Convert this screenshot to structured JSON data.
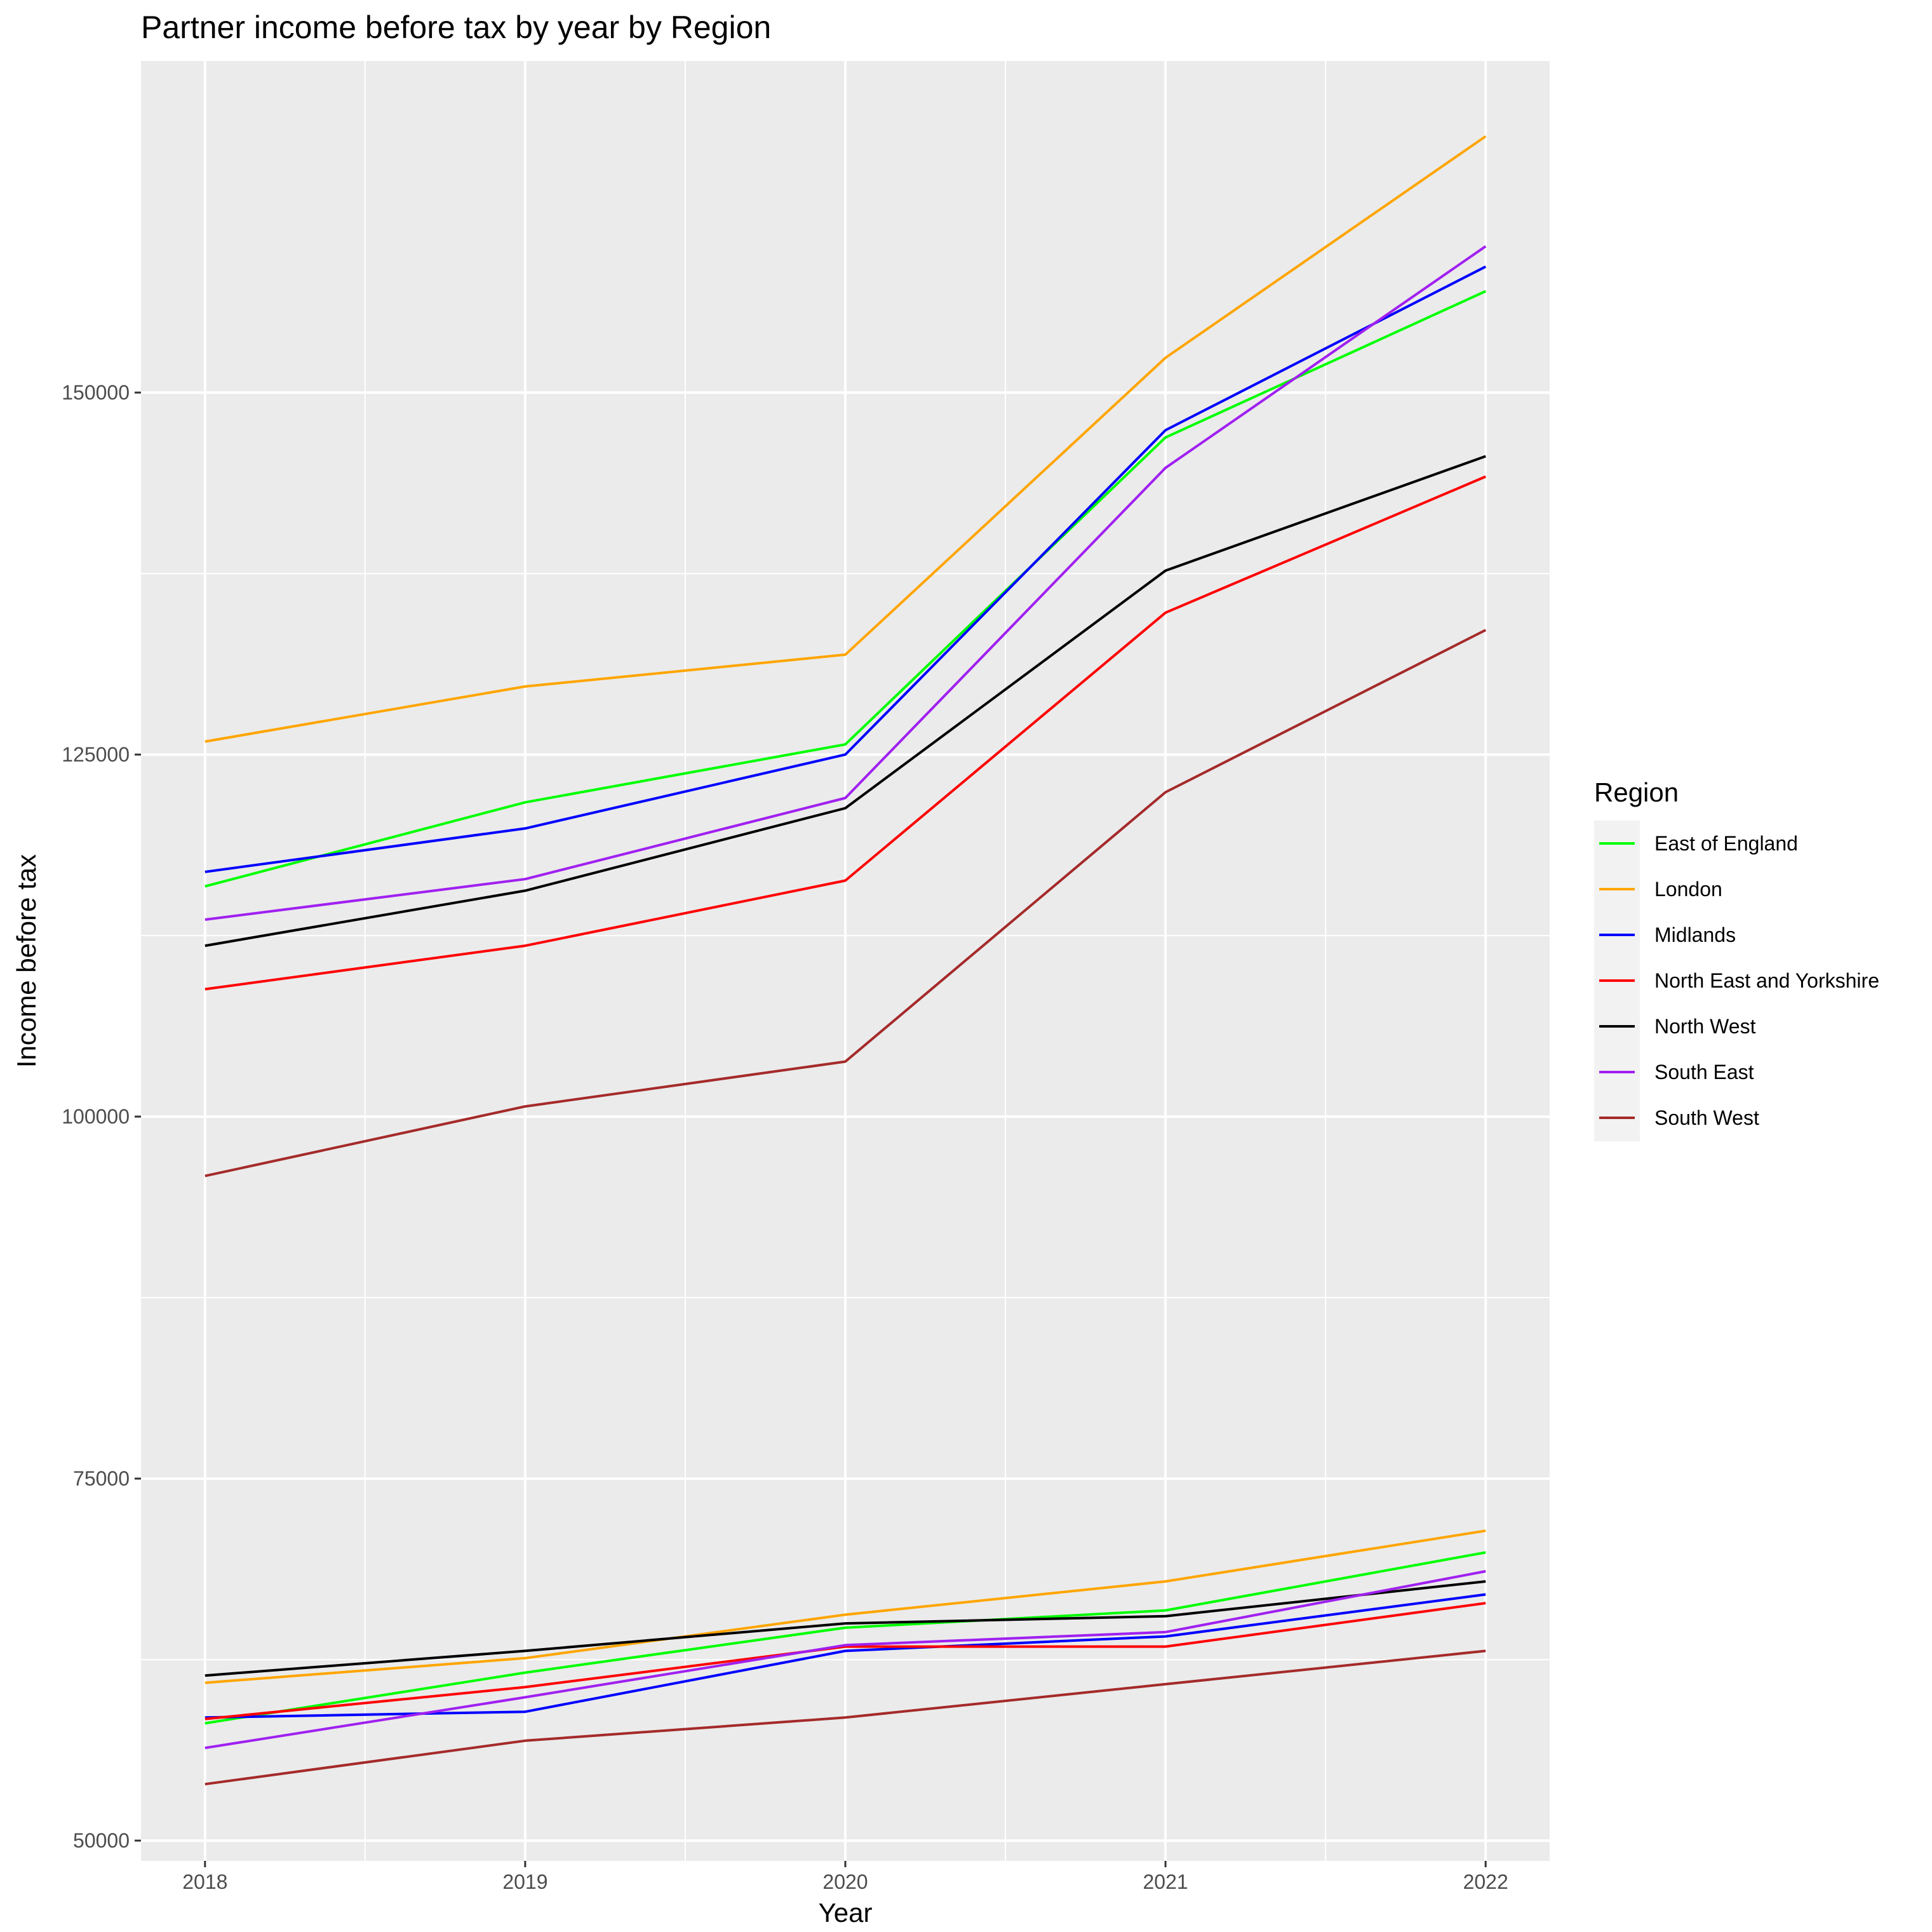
{
  "chart_data": {
    "type": "line",
    "title": "Partner income before tax by year by Region",
    "xlabel": "Year",
    "ylabel": "Income before tax",
    "x": [
      2018,
      2019,
      2020,
      2021,
      2022
    ],
    "x_tick_labels": [
      "2018",
      "2019",
      "2020",
      "2021",
      "2022"
    ],
    "xlim": [
      2017.8,
      2022.2
    ],
    "y_ticks": [
      50000,
      75000,
      100000,
      125000,
      150000
    ],
    "y_tick_labels": [
      "50000",
      "75000",
      "100000",
      "125000",
      "150000"
    ],
    "ylim": [
      48600,
      172900
    ],
    "grid": true,
    "panel_background": "#ebebeb",
    "grid_color": "#ffffff",
    "legend": {
      "title": "Region",
      "position": "right",
      "entries": [
        {
          "label": "East of England",
          "color": "#00ff00"
        },
        {
          "label": "London",
          "color": "#ffa500"
        },
        {
          "label": "Midlands",
          "color": "#0000ff"
        },
        {
          "label": "North East and Yorkshire",
          "color": "#ff0000"
        },
        {
          "label": "North West",
          "color": "#000000"
        },
        {
          "label": "South East",
          "color": "#a020f0"
        },
        {
          "label": "South West",
          "color": "#a52a2a"
        }
      ]
    },
    "series": [
      {
        "name": "East of England",
        "group": "upper",
        "color": "#00ff00",
        "values": [
          115900,
          121700,
          125700,
          146900,
          157000
        ]
      },
      {
        "name": "London",
        "group": "upper",
        "color": "#ffa500",
        "values": [
          125900,
          129700,
          131900,
          152400,
          167700
        ]
      },
      {
        "name": "Midlands",
        "group": "upper",
        "color": "#0000ff",
        "values": [
          116900,
          119900,
          125000,
          147400,
          158700
        ]
      },
      {
        "name": "North East and Yorkshire",
        "group": "upper",
        "color": "#ff0000",
        "values": [
          108800,
          111800,
          116300,
          134800,
          144200
        ]
      },
      {
        "name": "North West",
        "group": "upper",
        "color": "#000000",
        "values": [
          111800,
          115600,
          121300,
          137700,
          145600
        ]
      },
      {
        "name": "South East",
        "group": "upper",
        "color": "#a020f0",
        "values": [
          113600,
          116400,
          122000,
          144800,
          160100
        ]
      },
      {
        "name": "South West",
        "group": "upper",
        "color": "#a52a2a",
        "values": [
          95900,
          100700,
          103800,
          122400,
          133600
        ]
      },
      {
        "name": "East of England",
        "group": "lower",
        "color": "#00ff00",
        "values": [
          58100,
          61600,
          64700,
          65900,
          69900
        ]
      },
      {
        "name": "London",
        "group": "lower",
        "color": "#ffa500",
        "values": [
          60900,
          62600,
          65600,
          67900,
          71400
        ]
      },
      {
        "name": "Midlands",
        "group": "lower",
        "color": "#0000ff",
        "values": [
          58500,
          58900,
          63100,
          64100,
          67000
        ]
      },
      {
        "name": "North East and Yorkshire",
        "group": "lower",
        "color": "#ff0000",
        "values": [
          58400,
          60600,
          63400,
          63400,
          66400
        ]
      },
      {
        "name": "North West",
        "group": "lower",
        "color": "#000000",
        "values": [
          61400,
          63100,
          65000,
          65500,
          67900
        ]
      },
      {
        "name": "South East",
        "group": "lower",
        "color": "#a020f0",
        "values": [
          56400,
          59900,
          63500,
          64400,
          68600
        ]
      },
      {
        "name": "South West",
        "group": "lower",
        "color": "#a52a2a",
        "values": [
          53900,
          56900,
          58500,
          60800,
          63100
        ]
      }
    ]
  }
}
